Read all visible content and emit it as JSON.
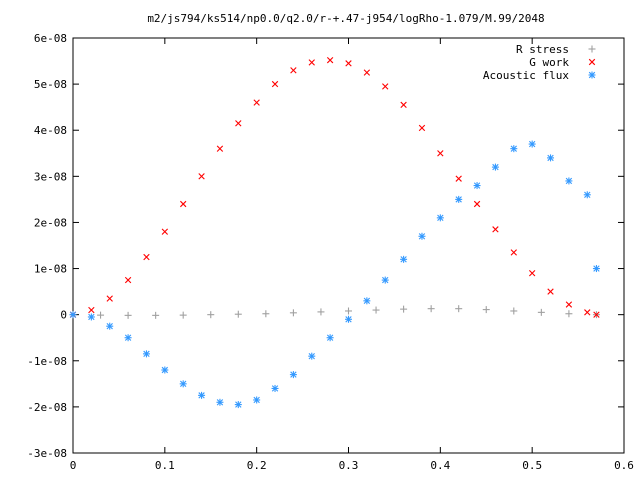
{
  "chart_data": {
    "type": "scatter",
    "title": "m2/js794/ks514/np0.0/q2.0/r-+.47-j954/logRho-1.079/M.99/2048",
    "xlabel": "",
    "ylabel": "",
    "xlim": [
      0,
      0.6
    ],
    "ylim": [
      -3e-08,
      6e-08
    ],
    "x_ticks": [
      0,
      0.1,
      0.2,
      0.3,
      0.4,
      0.5,
      0.6
    ],
    "x_tick_labels": [
      "0",
      "0.1",
      "0.2",
      "0.3",
      "0.4",
      "0.5",
      "0.6"
    ],
    "y_ticks": [
      -3e-08,
      -2e-08,
      -1e-08,
      0,
      1e-08,
      2e-08,
      3e-08,
      4e-08,
      5e-08,
      6e-08
    ],
    "y_tick_labels": [
      "-3e-08",
      "-2e-08",
      "-1e-08",
      "0",
      "1e-08",
      "2e-08",
      "3e-08",
      "4e-08",
      "5e-08",
      "6e-08"
    ],
    "grid": false,
    "legend_position": "top-right",
    "series": [
      {
        "name": "R stress",
        "marker": "plus",
        "color": "#a0a0a0",
        "x": [
          0.0,
          0.03,
          0.06,
          0.09,
          0.12,
          0.15,
          0.18,
          0.21,
          0.24,
          0.27,
          0.3,
          0.33,
          0.36,
          0.39,
          0.42,
          0.45,
          0.48,
          0.51,
          0.54,
          0.57
        ],
        "y": [
          0.0,
          -1e-10,
          -1.5e-10,
          -1.5e-10,
          -1e-10,
          0.0,
          1e-10,
          2e-10,
          4e-10,
          6e-10,
          8e-10,
          1e-09,
          1.2e-09,
          1.3e-09,
          1.3e-09,
          1.1e-09,
          8e-10,
          5e-10,
          2e-10,
          0.0
        ]
      },
      {
        "name": "G work",
        "marker": "cross",
        "color": "#ff0000",
        "x": [
          0.0,
          0.02,
          0.04,
          0.06,
          0.08,
          0.1,
          0.12,
          0.14,
          0.16,
          0.18,
          0.2,
          0.22,
          0.24,
          0.26,
          0.28,
          0.3,
          0.32,
          0.34,
          0.36,
          0.38,
          0.4,
          0.42,
          0.44,
          0.46,
          0.48,
          0.5,
          0.52,
          0.54,
          0.56,
          0.57
        ],
        "y": [
          0.0,
          1e-09,
          3.5e-09,
          7.5e-09,
          1.25e-08,
          1.8e-08,
          2.4e-08,
          3e-08,
          3.6e-08,
          4.15e-08,
          4.6e-08,
          5e-08,
          5.3e-08,
          5.47e-08,
          5.52e-08,
          5.45e-08,
          5.25e-08,
          4.95e-08,
          4.55e-08,
          4.05e-08,
          3.5e-08,
          2.95e-08,
          2.4e-08,
          1.85e-08,
          1.35e-08,
          9e-09,
          5e-09,
          2.2e-09,
          5e-10,
          0.0
        ]
      },
      {
        "name": "Acoustic flux",
        "marker": "star",
        "color": "#3399ff",
        "x": [
          0.0,
          0.02,
          0.04,
          0.06,
          0.08,
          0.1,
          0.12,
          0.14,
          0.16,
          0.18,
          0.2,
          0.22,
          0.24,
          0.26,
          0.28,
          0.3,
          0.32,
          0.34,
          0.36,
          0.38,
          0.4,
          0.42,
          0.44,
          0.46,
          0.48,
          0.5,
          0.52,
          0.54,
          0.56,
          0.57
        ],
        "y": [
          0.0,
          -5e-10,
          -2.5e-09,
          -5e-09,
          -8.5e-09,
          -1.2e-08,
          -1.5e-08,
          -1.75e-08,
          -1.9e-08,
          -1.95e-08,
          -1.85e-08,
          -1.6e-08,
          -1.3e-08,
          -9e-09,
          -5e-09,
          -1e-09,
          3e-09,
          7.5e-09,
          1.2e-08,
          1.7e-08,
          2.1e-08,
          2.5e-08,
          2.8e-08,
          3.2e-08,
          3.6e-08,
          3.7e-08,
          3.4e-08,
          2.9e-08,
          2.6e-08,
          1e-08
        ]
      }
    ]
  }
}
